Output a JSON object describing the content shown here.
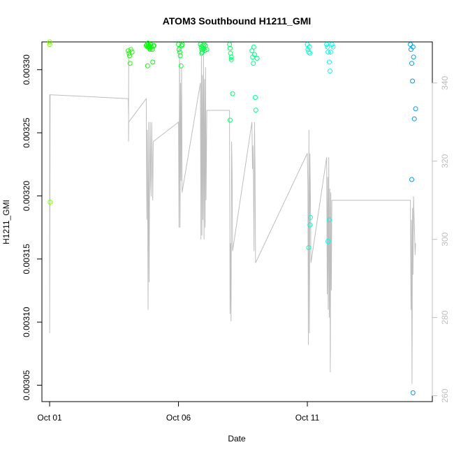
{
  "chart_data": {
    "type": "scatter",
    "title": "ATOM3 Southbound H1211_GMI",
    "xlabel": "Date",
    "ylabel": "H1211_GMI",
    "x_ticks": [
      "Oct 01",
      "Oct 06",
      "Oct 11"
    ],
    "x_tick_days": [
      1,
      6,
      11
    ],
    "xlim": [
      0.7,
      15.85
    ],
    "ylim": [
      0.003037,
      0.003322
    ],
    "y_ticks": [
      "0.00305",
      "0.00310",
      "0.00315",
      "0.00320",
      "0.00325",
      "0.00330"
    ],
    "y_tick_values": [
      0.00305,
      0.0031,
      0.00315,
      0.0032,
      0.00325,
      0.0033
    ],
    "y2_ticks": [
      "260",
      "280",
      "300",
      "320",
      "340"
    ],
    "y2_tick_values": [
      260,
      280,
      300,
      320,
      340
    ],
    "y2lim": [
      258.5,
      350.5
    ],
    "grid": false,
    "legend": "none",
    "points_color_note": "colored by date (green to blue)",
    "colors": {
      "line": "#bebebe",
      "axis": "#000000",
      "right_axis": "#bebebe"
    },
    "scatter_series": {
      "x_day": [
        1.0,
        1.0,
        1.02,
        4.05,
        4.08,
        4.1,
        4.12,
        4.15,
        4.2,
        4.75,
        4.78,
        4.8,
        4.82,
        4.85,
        4.88,
        4.9,
        4.92,
        4.95,
        4.98,
        5.0,
        5.02,
        4.8,
        4.85,
        5.05,
        6.0,
        6.02,
        6.05,
        6.07,
        6.1,
        6.12,
        6.15,
        6.85,
        6.88,
        6.9,
        6.92,
        6.95,
        6.98,
        7.0,
        7.02,
        7.05,
        7.1,
        6.9,
        6.95,
        7.98,
        8.0,
        8.02,
        8.05,
        8.1,
        8.0,
        8.05,
        8.85,
        8.88,
        8.9,
        8.92,
        8.95,
        8.98,
        9.0,
        9.05,
        11.0,
        11.02,
        11.05,
        11.08,
        11.1,
        11.12,
        11.05,
        11.1,
        11.75,
        11.78,
        11.8,
        11.85,
        11.88,
        11.9,
        11.95,
        12.0,
        11.8,
        11.85,
        15.0,
        15.02,
        15.05,
        15.08,
        15.1,
        15.12,
        15.15,
        15.2,
        15.05,
        15.1
      ],
      "y": [
        0.003322,
        0.00332,
        0.003195,
        0.003315,
        0.003313,
        0.003311,
        0.003305,
        0.003316,
        0.003314,
        0.003319,
        0.00332,
        0.003318,
        0.003321,
        0.003319,
        0.003317,
        0.003316,
        0.00332,
        0.003318,
        0.003316,
        0.003306,
        0.003319,
        0.003303,
        0.003318,
        0.003319,
        0.00332,
        0.003316,
        0.003314,
        0.003311,
        0.003303,
        0.003319,
        0.00332,
        0.00332,
        0.003318,
        0.003316,
        0.003314,
        0.003319,
        0.003317,
        0.00332,
        0.003315,
        0.003319,
        0.003316,
        0.003313,
        0.003316,
        0.00332,
        0.003317,
        0.003313,
        0.003308,
        0.003281,
        0.00326,
        0.00331,
        0.003315,
        0.00331,
        0.003305,
        0.003318,
        0.003312,
        0.003278,
        0.003268,
        0.003309,
        0.00332,
        0.003316,
        0.003314,
        0.003318,
        0.003313,
        0.003183,
        0.003159,
        0.003177,
        0.00332,
        0.003318,
        0.003314,
        0.003306,
        0.003299,
        0.003314,
        0.00332,
        0.003318,
        0.003164,
        0.003181,
        0.00332,
        0.003316,
        0.003305,
        0.003291,
        0.003318,
        0.00331,
        0.003261,
        0.003269,
        0.003213,
        0.003044
      ]
    },
    "line_series": {
      "x_day": [
        1.0,
        1.0,
        1.02,
        1.0,
        4.05,
        4.06,
        4.07,
        4.06,
        4.07,
        4.75,
        4.77,
        4.79,
        4.8,
        4.82,
        4.84,
        4.86,
        4.88,
        4.9,
        4.92,
        4.94,
        4.96,
        4.98,
        5.0,
        5.02,
        6.0,
        6.02,
        6.04,
        6.06,
        6.08,
        6.1,
        6.12,
        6.14,
        6.85,
        6.87,
        6.89,
        6.91,
        6.93,
        6.95,
        6.97,
        6.99,
        7.01,
        7.03,
        7.05,
        7.07,
        7.1,
        7.98,
        8.0,
        8.02,
        8.04,
        8.06,
        8.08,
        8.1,
        8.85,
        8.87,
        8.89,
        8.91,
        8.93,
        8.95,
        8.97,
        8.99,
        11.0,
        11.02,
        11.04,
        11.06,
        11.08,
        11.1,
        11.12,
        11.14,
        11.75,
        11.77,
        11.79,
        11.81,
        11.83,
        11.85,
        11.87,
        11.89,
        11.91,
        11.93,
        11.95,
        15.0,
        15.02,
        15.04,
        15.06,
        15.08,
        15.1,
        15.12,
        15.14,
        15.16,
        15.18,
        15.2
      ],
      "y_right": [
        337,
        276,
        337,
        337,
        336,
        332,
        348,
        325,
        330,
        336,
        305,
        328,
        316,
        282,
        330,
        289,
        316,
        330,
        315,
        311,
        330,
        320,
        310,
        325,
        330,
        303,
        349,
        303,
        340,
        315,
        344,
        312,
        340,
        300,
        347,
        301,
        342,
        305,
        347,
        300,
        341,
        303,
        344,
        310,
        333,
        333,
        281,
        299,
        279,
        325,
        317,
        297,
        330,
        318,
        324,
        316,
        297,
        330,
        319,
        294,
        322,
        314,
        273,
        328,
        276,
        322,
        310,
        294,
        321,
        286,
        316,
        282,
        321,
        280,
        313,
        266,
        312,
        287,
        310,
        310,
        282,
        305,
        263,
        308,
        291,
        311,
        306,
        302,
        296,
        299
      ]
    }
  }
}
